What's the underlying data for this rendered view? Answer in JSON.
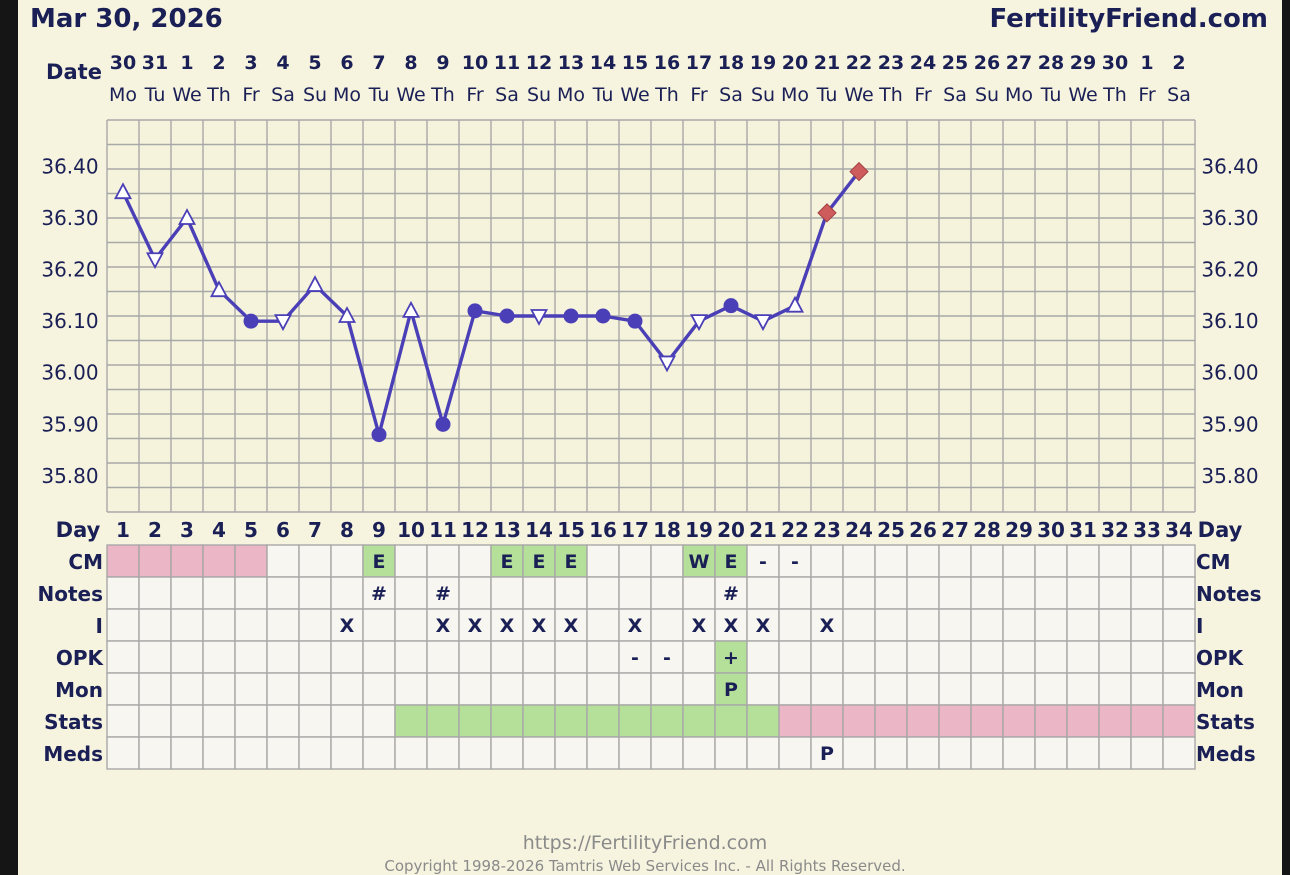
{
  "chart_data": {
    "type": "line",
    "title": "Mar 30, 2026",
    "site": "FertilityFriend.com",
    "date_row_label": "Date",
    "day_row_label": "Day",
    "date_numbers": [
      "30",
      "31",
      "1",
      "2",
      "3",
      "4",
      "5",
      "6",
      "7",
      "8",
      "9",
      "10",
      "11",
      "12",
      "13",
      "14",
      "15",
      "16",
      "17",
      "18",
      "19",
      "20",
      "21",
      "22",
      "23",
      "24",
      "25",
      "26",
      "27",
      "28",
      "29",
      "30",
      "1",
      "2"
    ],
    "weekdays": [
      "Mo",
      "Tu",
      "We",
      "Th",
      "Fr",
      "Sa",
      "Su",
      "Mo",
      "Tu",
      "We",
      "Th",
      "Fr",
      "Sa",
      "Su",
      "Mo",
      "Tu",
      "We",
      "Th",
      "Fr",
      "Sa",
      "Su",
      "Mo",
      "Tu",
      "We",
      "Th",
      "Fr",
      "Sa",
      "Su",
      "Mo",
      "Tu",
      "We",
      "Th",
      "Fr",
      "Sa"
    ],
    "cycle_days": [
      1,
      2,
      3,
      4,
      5,
      6,
      7,
      8,
      9,
      10,
      11,
      12,
      13,
      14,
      15,
      16,
      17,
      18,
      19,
      20,
      21,
      22,
      23,
      24,
      25,
      26,
      27,
      28,
      29,
      30,
      31,
      32,
      33,
      34
    ],
    "y_ticks": [
      "36.40",
      "36.30",
      "36.20",
      "36.10",
      "36.00",
      "35.90",
      "35.80"
    ],
    "y_tick_values": [
      36.4,
      36.3,
      36.2,
      36.1,
      36.0,
      35.9,
      35.8
    ],
    "ylim": [
      35.73,
      36.49
    ],
    "series": [
      {
        "values": [
          36.35,
          36.22,
          36.3,
          36.16,
          36.1,
          36.1,
          36.17,
          36.11,
          35.88,
          36.12,
          35.9,
          36.12,
          36.11,
          36.11,
          36.11,
          36.11,
          36.1,
          36.02,
          36.1,
          36.13,
          36.1,
          36.13,
          36.31,
          36.39
        ],
        "markers": [
          "tri-up",
          "tri-down",
          "tri-up",
          "tri-up",
          "dot",
          "tri-down",
          "tri-up",
          "tri-up",
          "dot",
          "tri-up",
          "dot",
          "dot",
          "dot",
          "tri-down",
          "dot",
          "dot",
          "dot",
          "tri-down",
          "tri-down",
          "dot",
          "tri-down",
          "tri-up",
          "diamond",
          "diamond"
        ]
      }
    ],
    "colors": {
      "line": "#4a3fb6",
      "diamond": "#cf5c5c",
      "pink": "#ebb6c6",
      "green": "#b5e09a",
      "grid": "#a8a8a8",
      "ink": "#1a1f55"
    },
    "rows": [
      {
        "label": "CM",
        "cells": {
          "9": "E",
          "13": "E",
          "14": "E",
          "15": "E",
          "19": "W",
          "20": "E",
          "21": "-",
          "22": "-"
        },
        "pink": [
          1,
          2,
          3,
          4,
          5
        ],
        "green": [
          9,
          13,
          14,
          15,
          19,
          20
        ]
      },
      {
        "label": "Notes",
        "cells": {
          "9": "#",
          "11": "#",
          "20": "#"
        },
        "pink": [],
        "green": []
      },
      {
        "label": "I",
        "cells": {
          "8": "X",
          "11": "X",
          "12": "X",
          "13": "X",
          "14": "X",
          "15": "X",
          "17": "X",
          "19": "X",
          "20": "X",
          "21": "X",
          "23": "X"
        },
        "pink": [],
        "green": []
      },
      {
        "label": "OPK",
        "cells": {
          "17": "-",
          "18": "-",
          "20": "+"
        },
        "pink": [],
        "green": [
          20
        ]
      },
      {
        "label": "Mon",
        "cells": {
          "20": "P"
        },
        "pink": [],
        "green": [
          20
        ]
      },
      {
        "label": "Stats",
        "cells": {},
        "pink": [
          22,
          23,
          24,
          25,
          26,
          27,
          28,
          29,
          30,
          31,
          32,
          33,
          34
        ],
        "green": [
          10,
          11,
          12,
          13,
          14,
          15,
          16,
          17,
          18,
          19,
          20,
          21
        ]
      },
      {
        "label": "Meds",
        "cells": {
          "23": "P"
        },
        "pink": [],
        "green": []
      }
    ]
  },
  "footer": {
    "url": "https://FertilityFriend.com",
    "copyright": "Copyright 1998-2026 Tamtris Web Services Inc. - All Rights Reserved."
  }
}
